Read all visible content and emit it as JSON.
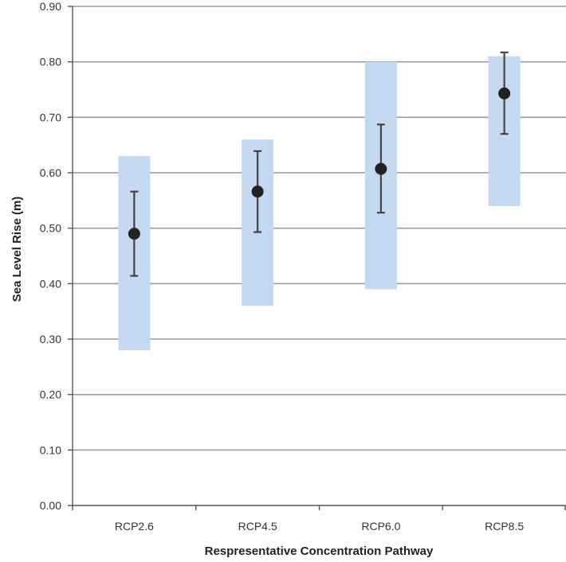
{
  "chart_data": {
    "type": "scatter",
    "title": "",
    "xlabel": "Respresentative Concentration Pathway",
    "ylabel": "Sea Level Rise (m)",
    "categories": [
      "RCP2.6",
      "RCP4.5",
      "RCP6.0",
      "RCP8.5"
    ],
    "ylim": [
      0,
      0.9
    ],
    "yticks": [
      "0.00",
      "0.10",
      "0.20",
      "0.30",
      "0.40",
      "0.50",
      "0.60",
      "0.70",
      "0.80",
      "0.90"
    ],
    "grid": true,
    "series": [
      {
        "values": [
          0.49,
          0.566,
          0.607,
          0.743
        ],
        "error_low": [
          0.414,
          0.493,
          0.528,
          0.67
        ],
        "error_high": [
          0.566,
          0.639,
          0.687,
          0.817
        ],
        "color": "#222222"
      }
    ],
    "ranges": [
      {
        "low": [
          0.28,
          0.36,
          0.39,
          0.54
        ],
        "high": [
          0.63,
          0.66,
          0.8,
          0.81
        ],
        "color": "#c5d9f1"
      }
    ],
    "colors": {
      "range_bar": "#c5d9f1",
      "marker": "#222222",
      "gridline": "#9a9a9a",
      "axis": "#555555"
    }
  }
}
